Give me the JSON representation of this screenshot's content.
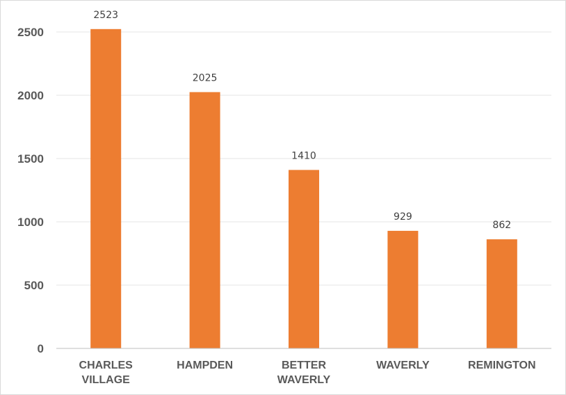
{
  "chart_data": {
    "type": "bar",
    "categories": [
      [
        "CHARLES",
        "VILLAGE"
      ],
      [
        "HAMPDEN"
      ],
      [
        "BETTER",
        "WAVERLY"
      ],
      [
        "WAVERLY"
      ],
      [
        "REMINGTON"
      ]
    ],
    "values": [
      2523,
      2025,
      1410,
      929,
      862
    ],
    "data_labels": [
      "2523",
      "2025",
      "1410",
      "929",
      "862"
    ],
    "yticks": [
      0,
      500,
      1000,
      1500,
      2000,
      2500
    ],
    "ylim": [
      0,
      2750
    ],
    "grid": true,
    "legend": "none",
    "colors": {
      "bar": "#ED7D31",
      "grid": "#e6e6e6",
      "axis": "#bfbfbf",
      "text": "#595959"
    }
  }
}
